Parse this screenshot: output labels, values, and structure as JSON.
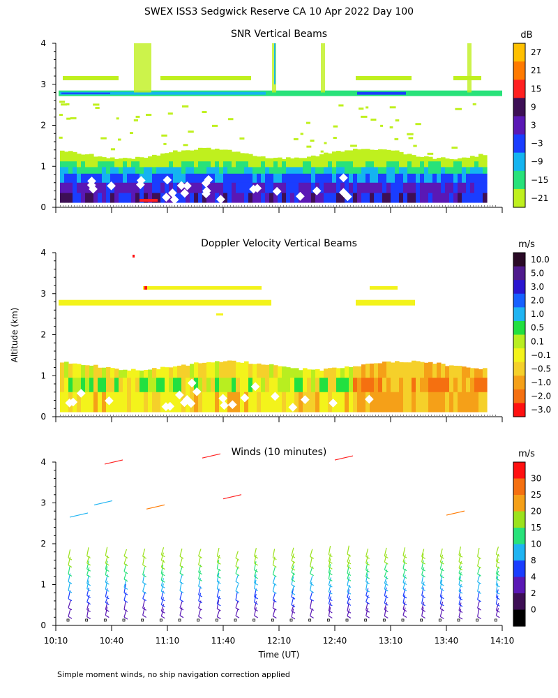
{
  "title": "SWEX ISS3 Sedgwick Reserve CA  10 Apr 2022 Day 100",
  "footnote": "Simple moment winds, no ship navigation correction applied",
  "shared_axes": {
    "y_label": "Altitude (km)",
    "y_ticks": [
      "0",
      "1",
      "2",
      "3",
      "4"
    ],
    "x_label": "Time (UT)",
    "x_ticks": [
      "10:10",
      "10:40",
      "11:10",
      "11:40",
      "12:10",
      "12:40",
      "13:10",
      "13:40",
      "14:10"
    ]
  },
  "chart_data": [
    {
      "type": "heatmap",
      "title": "SNR Vertical Beams",
      "xlabel": "Time (UT)",
      "ylabel": "Altitude (km)",
      "ylim": [
        0,
        4
      ],
      "xlim": [
        "10:10",
        "14:10"
      ],
      "colorbar": {
        "unit": "dB",
        "labels": [
          "27",
          "21",
          "15",
          "9",
          "3",
          "−3",
          "−9",
          "−15",
          "−21"
        ],
        "colors": [
          "#ffc000",
          "#ff7a00",
          "#ff2020",
          "#3d0f55",
          "#5a18b5",
          "#1a3dff",
          "#14b4f0",
          "#28e27a",
          "#bff01e"
        ]
      },
      "features": [
        {
          "desc": "strong layer",
          "alt_km": 2.78,
          "time_start": "10:10",
          "time_end": "14:10"
        },
        {
          "desc": "weak layer",
          "alt_km": 3.15,
          "time_start": "10:10",
          "time_end": "13:10"
        },
        {
          "desc": "boundary layer echo",
          "alt_km_min": 0.1,
          "alt_km_max": 1.3,
          "time_start": "10:10",
          "time_end": "14:05"
        }
      ]
    },
    {
      "type": "heatmap",
      "title": "Doppler Velocity Vertical Beams",
      "xlabel": "Time (UT)",
      "ylabel": "Altitude (km)",
      "ylim": [
        0,
        4
      ],
      "xlim": [
        "10:10",
        "14:10"
      ],
      "colorbar": {
        "unit": "m/s",
        "labels": [
          "10.0",
          "5.0",
          "3.0",
          "2.0",
          "1.0",
          "0.5",
          "0.1",
          "−0.1",
          "−0.5",
          "−1.0",
          "−2.0",
          "−3.0"
        ],
        "colors": [
          "#2a0a26",
          "#4e1a8c",
          "#2a16d0",
          "#1660ff",
          "#1fb4f2",
          "#22e040",
          "#b8ee20",
          "#f3f31b",
          "#f5d02a",
          "#f5a018",
          "#f57010",
          "#ff1010"
        ]
      },
      "features": [
        {
          "desc": "layer",
          "alt_km": 2.78,
          "time_start": "10:10",
          "time_end": "12:10",
          "velocity": "-0.1 to 0.1"
        },
        {
          "desc": "boundary layer",
          "alt_km_min": 0.1,
          "alt_km_max": 1.3,
          "time_start": "10:10",
          "time_end": "14:05",
          "velocity": "-2.0 to 0.5"
        }
      ]
    },
    {
      "type": "scatter",
      "title": "Winds (10 minutes)",
      "xlabel": "Time (UT)",
      "ylabel": "Altitude (km)",
      "ylim": [
        0,
        4
      ],
      "xlim": [
        "10:10",
        "14:10"
      ],
      "marker": "wind barb",
      "colorbar": {
        "unit": "m/s",
        "labels": [
          "30",
          "25",
          "20",
          "15",
          "10",
          "8",
          "4",
          "2",
          "0"
        ],
        "colors": [
          "#ff1010",
          "#f57010",
          "#f5a018",
          "#9be21c",
          "#28e27a",
          "#1fb4f2",
          "#1a3dff",
          "#5a18b5",
          "#3d0f55",
          "#000000"
        ]
      },
      "profile_times": [
        "10:10",
        "10:20",
        "10:30",
        "10:40",
        "10:50",
        "11:00",
        "11:10",
        "11:20",
        "11:30",
        "11:40",
        "11:50",
        "12:00",
        "12:10",
        "12:20",
        "12:30",
        "12:40",
        "12:50",
        "13:00",
        "13:10",
        "13:20",
        "13:30",
        "13:40",
        "13:50",
        "14:00"
      ]
    }
  ]
}
